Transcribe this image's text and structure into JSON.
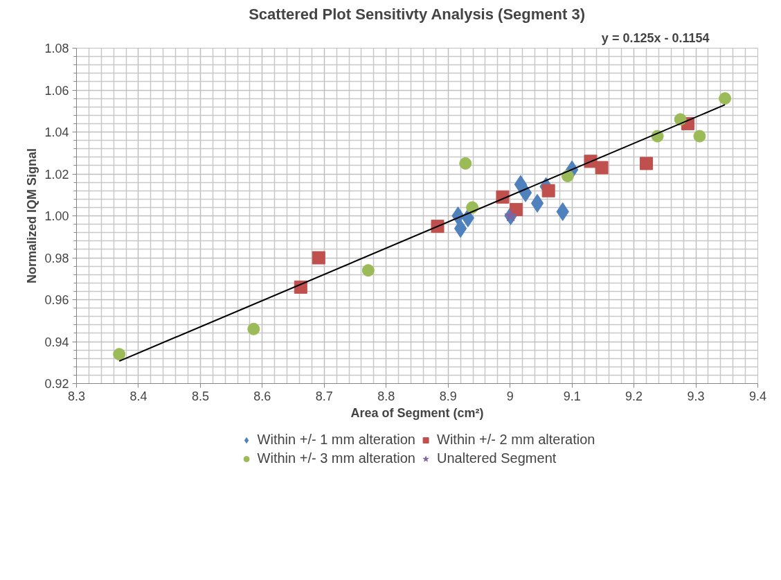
{
  "chart_data": {
    "type": "scatter",
    "title": "Scattered Plot Sensitivty Analysis (Segment 3)",
    "xlabel": "Area of Segment (cm²)",
    "ylabel": "Normalized IQM Signal",
    "xlim": [
      8.3,
      9.4
    ],
    "xticks": [
      8.3,
      8.4,
      8.5,
      8.6,
      8.7,
      8.8,
      8.9,
      {
        "value": 9.0,
        "label": "9"
      },
      9.1,
      9.2,
      9.3,
      9.4
    ],
    "ylim": [
      0.92,
      1.08
    ],
    "yticks": [
      {
        "value": 0.92,
        "label": "0.92"
      },
      {
        "value": 0.94,
        "label": "0.94"
      },
      {
        "value": 0.96,
        "label": "0.96"
      },
      {
        "value": 0.98,
        "label": "0.98"
      },
      {
        "value": 1.0,
        "label": "1.00"
      },
      {
        "value": 1.02,
        "label": "1.02"
      },
      {
        "value": 1.04,
        "label": "1.04"
      },
      {
        "value": 1.06,
        "label": "1.06"
      },
      {
        "value": 1.08,
        "label": "1.08"
      }
    ],
    "grid": true,
    "legend": "bottom",
    "annotations": [
      "y = 0.125x - 0.1154"
    ],
    "series": [
      {
        "name": "Within +/- 1 mm alteration",
        "color": "#4f81bd",
        "marker": "diamond",
        "x": [
          8.916,
          8.92,
          8.932,
          9.001,
          9.017,
          9.025,
          9.044,
          9.058,
          9.085,
          9.1
        ],
        "values": [
          1.0,
          0.994,
          0.999,
          1.0,
          1.015,
          1.011,
          1.006,
          1.014,
          1.002,
          1.022
        ]
      },
      {
        "name": "Within +/- 2 mm alteration",
        "color": "#c0504d",
        "marker": "square",
        "x": [
          8.662,
          8.691,
          8.883,
          8.988,
          9.01,
          9.062,
          9.13,
          9.148,
          9.22,
          9.287
        ],
        "values": [
          0.966,
          0.98,
          0.995,
          1.009,
          1.003,
          1.012,
          1.026,
          1.023,
          1.025,
          1.044
        ]
      },
      {
        "name": "Within +/- 3 mm alteration",
        "color": "#9bbb59",
        "marker": "circle",
        "x": [
          8.369,
          8.586,
          8.771,
          8.928,
          8.939,
          9.093,
          9.238,
          9.275,
          9.306,
          9.347
        ],
        "values": [
          0.934,
          0.946,
          0.974,
          1.025,
          1.004,
          1.019,
          1.038,
          1.046,
          1.038,
          1.056
        ]
      },
      {
        "name": "Unaltered Segment",
        "color": "#8064a2",
        "marker": "star",
        "x": [
          9.001
        ],
        "values": [
          1.0
        ]
      },
      {
        "type": "line",
        "color": "#000000",
        "x": [
          8.369,
          9.347
        ],
        "values": [
          0.9307,
          1.053
        ]
      }
    ]
  }
}
